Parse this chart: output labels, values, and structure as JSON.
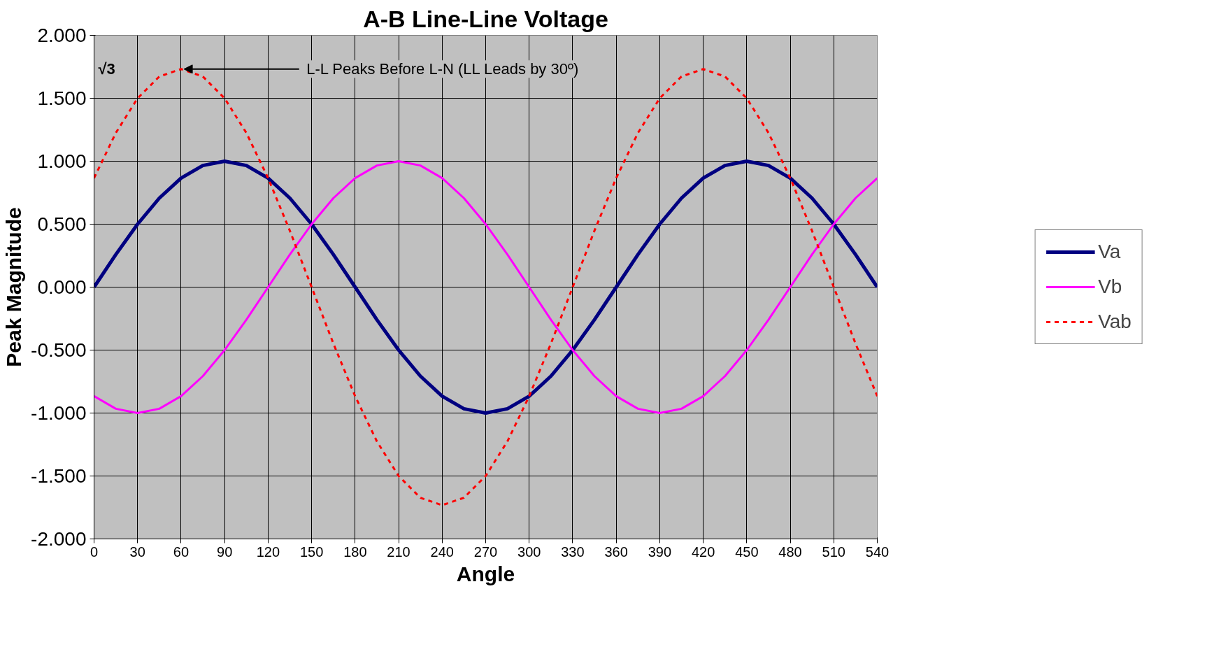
{
  "chart_data": {
    "type": "line",
    "title": "A-B Line-Line Voltage",
    "xlabel": "Angle",
    "ylabel": "Peak Magnitude",
    "x": [
      0,
      15,
      30,
      45,
      60,
      75,
      90,
      105,
      120,
      135,
      150,
      165,
      180,
      195,
      210,
      225,
      240,
      255,
      270,
      285,
      300,
      315,
      330,
      345,
      360,
      375,
      390,
      405,
      420,
      435,
      450,
      465,
      480,
      495,
      510,
      525,
      540
    ],
    "series": [
      {
        "name": "Va",
        "color": "#000080",
        "line_style": "solid",
        "values": [
          0,
          0.259,
          0.5,
          0.707,
          0.866,
          0.966,
          1,
          0.966,
          0.866,
          0.707,
          0.5,
          0.259,
          0,
          -0.259,
          -0.5,
          -0.707,
          -0.866,
          -0.966,
          -1,
          -0.966,
          -0.866,
          -0.707,
          -0.5,
          -0.259,
          0,
          0.259,
          0.5,
          0.707,
          0.866,
          0.966,
          1,
          0.966,
          0.866,
          0.707,
          0.5,
          0.259,
          0
        ]
      },
      {
        "name": "Vb",
        "color": "#ff00ff",
        "line_style": "solid",
        "values": [
          -0.866,
          -0.966,
          -1,
          -0.966,
          -0.866,
          -0.707,
          -0.5,
          -0.259,
          0,
          0.259,
          0.5,
          0.707,
          0.866,
          0.966,
          1,
          0.966,
          0.866,
          0.707,
          0.5,
          0.259,
          0,
          -0.259,
          -0.5,
          -0.707,
          -0.866,
          -0.966,
          -1,
          -0.966,
          -0.866,
          -0.707,
          -0.5,
          -0.259,
          0,
          0.259,
          0.5,
          0.707,
          0.866
        ]
      },
      {
        "name": "Vab",
        "color": "#ff0000",
        "line_style": "dashed",
        "values": [
          0.866,
          1.225,
          1.5,
          1.673,
          1.732,
          1.673,
          1.5,
          1.225,
          0.866,
          0.448,
          0,
          -0.448,
          -0.866,
          -1.225,
          -1.5,
          -1.673,
          -1.732,
          -1.673,
          -1.5,
          -1.225,
          -0.866,
          -0.448,
          0,
          0.448,
          0.866,
          1.225,
          1.5,
          1.673,
          1.732,
          1.673,
          1.5,
          1.225,
          0.866,
          0.448,
          0,
          -0.448,
          -0.866
        ]
      }
    ],
    "xlim": [
      0,
      540
    ],
    "xticks": [
      0,
      30,
      60,
      90,
      120,
      150,
      180,
      210,
      240,
      270,
      300,
      330,
      360,
      390,
      420,
      450,
      480,
      510,
      540
    ],
    "ylim": [
      -2,
      2
    ],
    "yticks": [
      {
        "value": -2,
        "label": "-2.000"
      },
      {
        "value": -1.5,
        "label": "-1.500"
      },
      {
        "value": -1,
        "label": "-1.000"
      },
      {
        "value": -0.5,
        "label": "-0.500"
      },
      {
        "value": 0,
        "label": "0.000"
      },
      {
        "value": 0.5,
        "label": "0.500"
      },
      {
        "value": 1,
        "label": "1.000"
      },
      {
        "value": 1.5,
        "label": "1.500"
      },
      {
        "value": 2,
        "label": "2.000"
      }
    ],
    "annotations": [
      "√3",
      {
        "text": "L-L Peaks Before L-N (LL Leads by 30º)",
        "x": 60,
        "y": 1.732
      }
    ],
    "grid": true,
    "legend": "right",
    "marker": "none"
  }
}
